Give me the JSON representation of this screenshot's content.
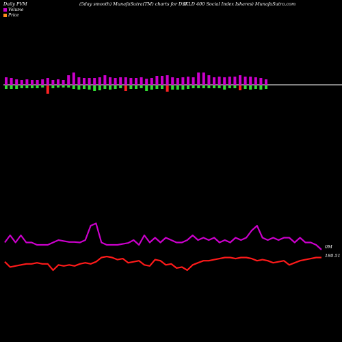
{
  "header": {
    "left": "Daily PVM",
    "center": "(5day smooth) MunafaSutra(TM) charts for DSI",
    "right": "(KLD 400  Social Index Ishares) MunafaSutra.com"
  },
  "legend": [
    {
      "label": "Volume",
      "color": "#cc00cc"
    },
    {
      "label": "Price",
      "color": "#ff8c1a"
    }
  ],
  "labels": {
    "volume_right": "0M",
    "price_right": "180.51"
  },
  "colors": {
    "up_bar": "#cc00cc",
    "down_bar": "#ff2222",
    "neg_bar": "#33dd33",
    "volume_line": "#cc00cc",
    "price_line": "#ff1a1a",
    "baseline": "#ffffff"
  },
  "chart_data": {
    "type": "line",
    "series": [
      {
        "name": "Volume",
        "values": [
          35,
          50,
          35,
          50,
          35,
          35,
          30,
          30,
          30,
          35,
          40,
          38,
          36,
          36,
          35,
          40,
          70,
          75,
          35,
          30,
          30,
          30,
          32,
          34,
          40,
          30,
          50,
          35,
          45,
          35,
          45,
          40,
          35,
          35,
          40,
          50,
          40,
          45,
          40,
          45,
          35,
          40,
          35,
          45,
          40,
          45,
          60,
          70,
          45,
          40,
          45,
          40,
          45,
          45,
          35,
          45,
          35,
          35,
          30,
          20
        ]
      },
      {
        "name": "Price",
        "values": [
          180,
          175,
          176,
          177,
          178,
          178,
          179,
          178,
          178,
          172,
          177,
          176,
          177,
          176,
          178,
          179,
          178,
          180,
          184,
          185,
          184,
          182,
          183,
          179,
          180,
          181,
          177,
          176,
          182,
          181,
          177,
          178,
          174,
          175,
          172,
          177,
          179,
          181,
          181,
          182,
          183,
          184,
          184,
          183,
          184,
          184,
          183,
          181,
          182,
          181,
          179,
          180,
          181,
          177,
          179,
          181,
          182,
          183,
          184,
          184
        ]
      }
    ],
    "bars_top": [
      {
        "up": 11,
        "down": 5
      },
      {
        "up": 10,
        "down": 5
      },
      {
        "up": 8,
        "down": 5
      },
      {
        "up": 7,
        "down": 4
      },
      {
        "up": 8,
        "down": 4
      },
      {
        "up": 7,
        "down": 4
      },
      {
        "up": 7,
        "down": 4
      },
      {
        "up": 8,
        "down": 3
      },
      {
        "up": 10,
        "down": 12,
        "red": true
      },
      {
        "up": 7,
        "down": 4
      },
      {
        "up": 8,
        "down": 3
      },
      {
        "up": 7,
        "down": 3
      },
      {
        "up": 14,
        "down": 3
      },
      {
        "up": 18,
        "down": 5
      },
      {
        "up": 11,
        "down": 6
      },
      {
        "up": 10,
        "down": 5
      },
      {
        "up": 10,
        "down": 6
      },
      {
        "up": 10,
        "down": 8
      },
      {
        "up": 11,
        "down": 7
      },
      {
        "up": 14,
        "down": 5
      },
      {
        "up": 11,
        "down": 6
      },
      {
        "up": 10,
        "down": 5
      },
      {
        "up": 11,
        "down": 4
      },
      {
        "up": 11,
        "down": 8,
        "red": true
      },
      {
        "up": 10,
        "down": 5
      },
      {
        "up": 10,
        "down": 5
      },
      {
        "up": 11,
        "down": 4
      },
      {
        "up": 9,
        "down": 8
      },
      {
        "up": 10,
        "down": 6
      },
      {
        "up": 13,
        "down": 5
      },
      {
        "up": 13,
        "down": 5
      },
      {
        "up": 14,
        "down": 9,
        "red": true
      },
      {
        "up": 11,
        "down": 6
      },
      {
        "up": 10,
        "down": 6
      },
      {
        "up": 11,
        "down": 6
      },
      {
        "up": 12,
        "down": 5
      },
      {
        "up": 11,
        "down": 4
      },
      {
        "up": 18,
        "down": 4
      },
      {
        "up": 18,
        "down": 4
      },
      {
        "up": 14,
        "down": 4
      },
      {
        "up": 11,
        "down": 4
      },
      {
        "up": 12,
        "down": 4
      },
      {
        "up": 11,
        "down": 6
      },
      {
        "up": 12,
        "down": 4
      },
      {
        "up": 12,
        "down": 4
      },
      {
        "up": 14,
        "down": 7,
        "red": true
      },
      {
        "up": 12,
        "down": 5
      },
      {
        "up": 12,
        "down": 6
      },
      {
        "up": 11,
        "down": 5
      },
      {
        "up": 10,
        "down": 6
      },
      {
        "up": 8,
        "down": 5
      }
    ]
  }
}
